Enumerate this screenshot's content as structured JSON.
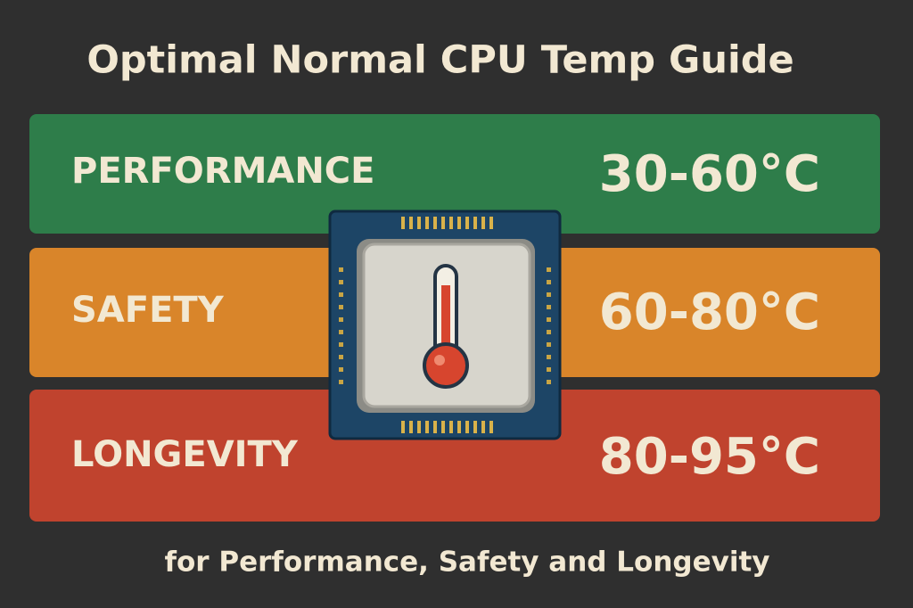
{
  "header": {
    "title": "Optimal Normal CPU Temp Guide"
  },
  "bands": [
    {
      "label": "PERFORMANCE",
      "range": "30-60°C"
    },
    {
      "label": "SAFETY",
      "range": "60-80°C"
    },
    {
      "label": "LONGEVITY",
      "range": "80-95°C"
    }
  ],
  "footer": {
    "subtitle": "for Performance, Safety and Longevity"
  }
}
